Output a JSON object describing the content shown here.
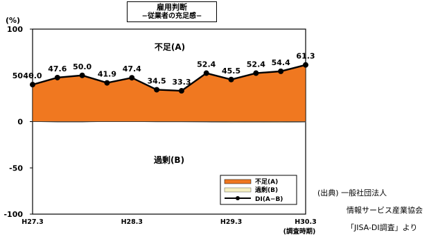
{
  "chart_data": {
    "type": "area",
    "title": "雇用判断",
    "subtitle": "−従業者の充足感−",
    "y_unit_label": "(%)",
    "ylim": [
      -100,
      100
    ],
    "yticks": [
      100,
      50,
      0,
      -50,
      -100
    ],
    "x_tick_labels": [
      "H27.3",
      "H28.3",
      "H29.3",
      "H30.3"
    ],
    "x_axis_note": "(調査時期)",
    "categories": [
      "1",
      "2",
      "3",
      "4",
      "5",
      "6",
      "7",
      "8",
      "9",
      "10",
      "11",
      "12"
    ],
    "series": [
      {
        "name": "不足(A)",
        "values": [
          40.0,
          47.6,
          50.0,
          41.9,
          47.4,
          34.5,
          33.3,
          52.4,
          45.5,
          52.4,
          54.4,
          61.3
        ],
        "color": "#f07820"
      },
      {
        "name": "過剰(B)",
        "values": [
          0.0,
          -0.5,
          -0.5,
          0.0,
          0.0,
          -0.3,
          -0.3,
          -0.5,
          -1.0,
          -0.8,
          -1.0,
          -0.5
        ],
        "color": "#f5f0c0"
      },
      {
        "name": "DI(A−B)",
        "values": [
          40.0,
          47.6,
          50.0,
          41.9,
          47.4,
          34.5,
          33.3,
          52.4,
          45.5,
          52.4,
          54.4,
          61.3
        ],
        "color": "#000000"
      }
    ],
    "data_labels": [
      "40.0",
      "47.6",
      "50.0",
      "41.9",
      "47.4",
      "34.5",
      "33.3",
      "52.4",
      "45.5",
      "52.4",
      "54.4",
      "61.3"
    ],
    "annotations": {
      "upper": "不足(A)",
      "lower": "過剰(B)"
    },
    "legend_position": "bottom-right",
    "grid": false
  },
  "source": {
    "line1": "(出典)  一般社団法人",
    "line2": "情報サービス産業協会",
    "line3": "「JISA-DI調査」より"
  }
}
